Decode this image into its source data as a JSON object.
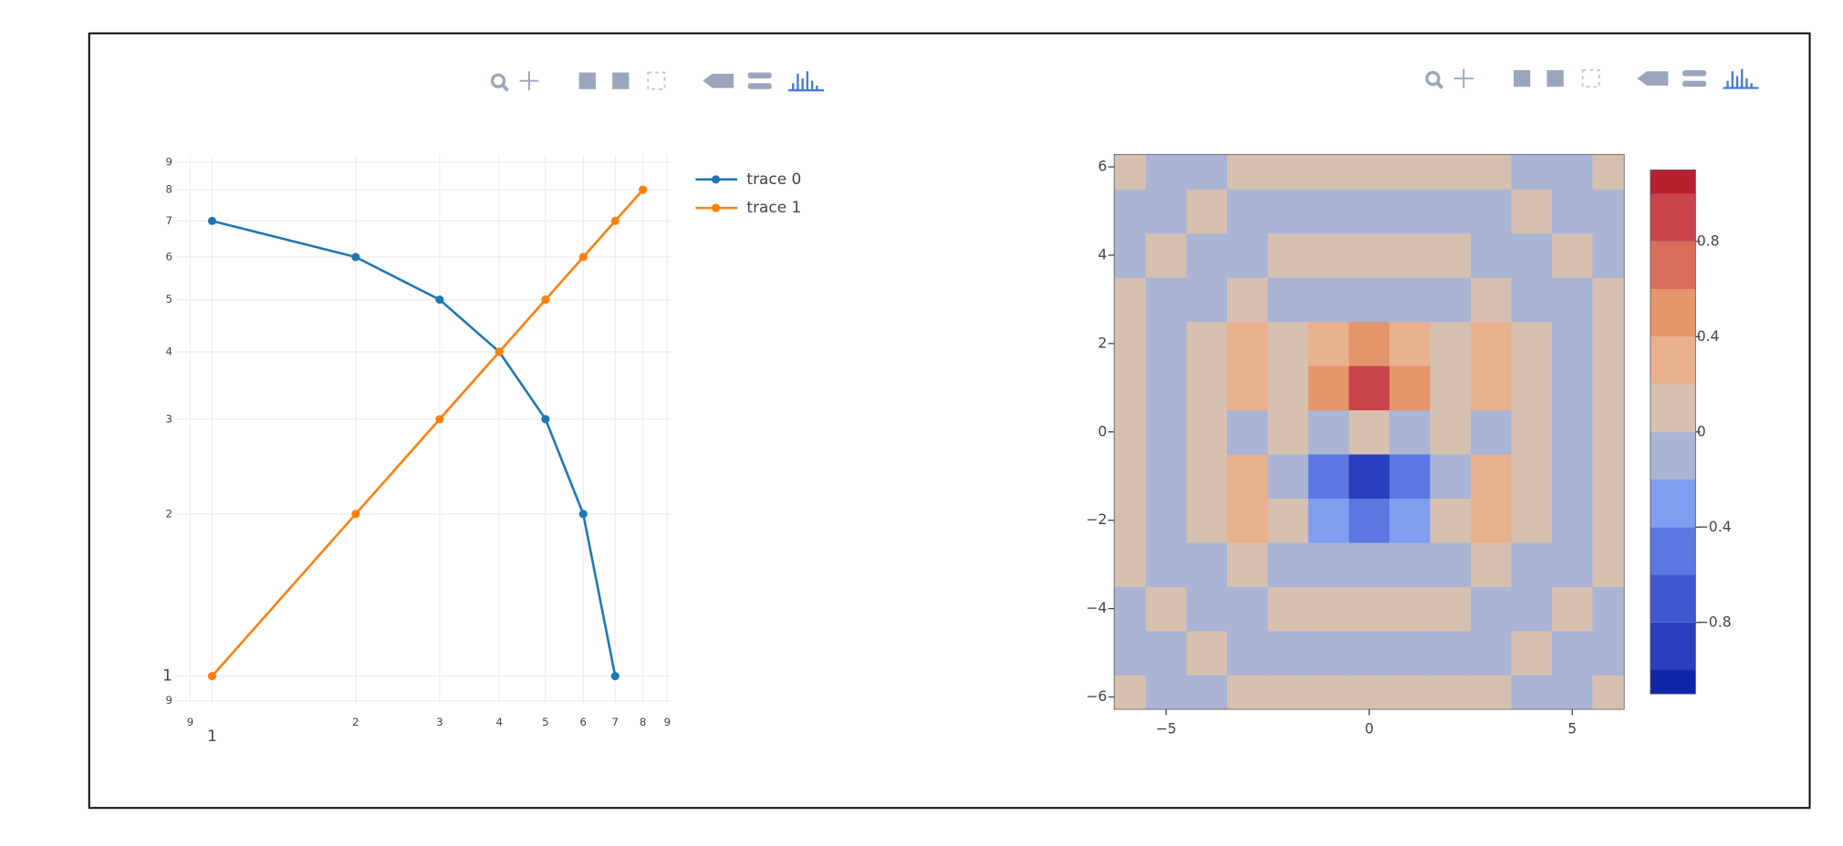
{
  "chart_data": [
    {
      "type": "line",
      "xlog": true,
      "ylog": true,
      "grid": true,
      "legend": "outside-right",
      "xlim": [
        0.84,
        9.2
      ],
      "ylim": [
        0.89,
        9.3
      ],
      "xticks": [
        {
          "value": 0.9,
          "label": "9"
        },
        1,
        2,
        3,
        4,
        5,
        6,
        7,
        8,
        9
      ],
      "yticks": [
        {
          "value": 0.9,
          "label": "9"
        },
        1,
        2,
        3,
        4,
        5,
        6,
        7,
        8,
        9
      ],
      "series": [
        {
          "name": "trace 0",
          "color": "#1f77b4",
          "x": [
            1,
            2,
            3,
            4,
            5,
            6,
            7
          ],
          "values": [
            7,
            6,
            5,
            4,
            3,
            2,
            1
          ]
        },
        {
          "name": "trace 1",
          "color": "#ff7f0e",
          "x": [
            1,
            2,
            3,
            4,
            5,
            6,
            7,
            8
          ],
          "values": [
            1,
            2,
            3,
            4,
            5,
            6,
            7,
            8
          ]
        }
      ]
    },
    {
      "type": "contour",
      "xlim": [
        -6.28,
        6.28
      ],
      "ylim": [
        -6.28,
        6.28
      ],
      "xticks": [
        {
          "value": -5,
          "label": "−5"
        },
        0,
        5
      ],
      "yticks": [
        {
          "value": -6,
          "label": "−6"
        },
        {
          "value": -4,
          "label": "−4"
        },
        {
          "value": -2,
          "label": "−2"
        },
        0,
        2,
        4,
        6
      ],
      "x": [
        -6,
        -5,
        -4,
        -3,
        -2,
        -1,
        0,
        1,
        2,
        3,
        4,
        5,
        6
      ],
      "y": [
        -6,
        -5,
        -4,
        -3,
        -2,
        -1,
        0,
        1,
        2,
        3,
        4,
        5,
        6
      ],
      "z": [
        [
          0.1,
          -0.1,
          -0.1,
          0.1,
          0.1,
          0.1,
          0.1,
          0.1,
          0.1,
          0.1,
          -0.1,
          -0.1,
          0.1
        ],
        [
          -0.1,
          -0.1,
          0.1,
          -0.1,
          -0.1,
          -0.1,
          -0.1,
          -0.1,
          -0.1,
          -0.1,
          0.1,
          -0.1,
          -0.1
        ],
        [
          -0.1,
          0.1,
          -0.1,
          -0.1,
          0.1,
          0.1,
          0.1,
          0.1,
          0.1,
          -0.1,
          -0.1,
          0.1,
          -0.1
        ],
        [
          0.1,
          -0.1,
          -0.1,
          0.1,
          -0.1,
          -0.1,
          -0.1,
          -0.1,
          -0.1,
          0.1,
          -0.1,
          -0.1,
          0.1
        ],
        [
          0.1,
          -0.1,
          0.1,
          0.3,
          0.1,
          -0.26,
          -0.43,
          -0.26,
          0.1,
          0.3,
          0.1,
          -0.1,
          0.1
        ],
        [
          0.1,
          -0.1,
          0.1,
          0.3,
          -0.13,
          -0.59,
          -0.97,
          -0.59,
          -0.13,
          0.3,
          0.1,
          -0.1,
          0.1
        ],
        [
          0.1,
          -0.1,
          0.1,
          -0.1,
          0.1,
          -0.1,
          0,
          -0.1,
          0.1,
          -0.1,
          0.1,
          -0.1,
          0.1
        ],
        [
          0.1,
          -0.1,
          0.1,
          0.3,
          0.13,
          0.59,
          0.97,
          0.59,
          0.13,
          0.3,
          0.1,
          -0.1,
          0.1
        ],
        [
          0.1,
          -0.1,
          0.1,
          0.3,
          0.1,
          0.26,
          0.43,
          0.26,
          0.1,
          0.3,
          0.1,
          -0.1,
          0.1
        ],
        [
          0.1,
          -0.1,
          -0.1,
          0.1,
          -0.1,
          -0.1,
          -0.1,
          -0.1,
          -0.1,
          0.1,
          -0.1,
          -0.1,
          0.1
        ],
        [
          -0.1,
          0.1,
          -0.1,
          -0.1,
          0.1,
          0.1,
          0.1,
          0.1,
          0.1,
          -0.1,
          -0.1,
          0.1,
          -0.1
        ],
        [
          -0.1,
          -0.1,
          0.1,
          -0.1,
          -0.1,
          -0.1,
          -0.1,
          -0.1,
          -0.1,
          -0.1,
          0.1,
          -0.1,
          -0.1
        ],
        [
          0.1,
          -0.1,
          -0.1,
          0.1,
          0.1,
          0.1,
          0.1,
          0.1,
          0.1,
          0.1,
          -0.1,
          -0.1,
          0.1
        ]
      ],
      "zlim": [
        -1.1,
        1.1
      ],
      "contours": {
        "start": -1,
        "end": 1,
        "size": 0.2
      },
      "colorscale": [
        "#0f26a8",
        "#2a3fbd",
        "#3f5ad0",
        "#5a78e0",
        "#7f9ef0",
        "#aab4d4",
        "#d6c0b0",
        "#e9b08e",
        "#e5956b",
        "#d96e5a",
        "#c8444a",
        "#b8202e"
      ],
      "colorbar_ticks": [
        {
          "value": -0.8,
          "label": "−0.8"
        },
        {
          "value": -0.4,
          "label": "−0.4"
        },
        0,
        0.4,
        0.8
      ]
    }
  ]
}
